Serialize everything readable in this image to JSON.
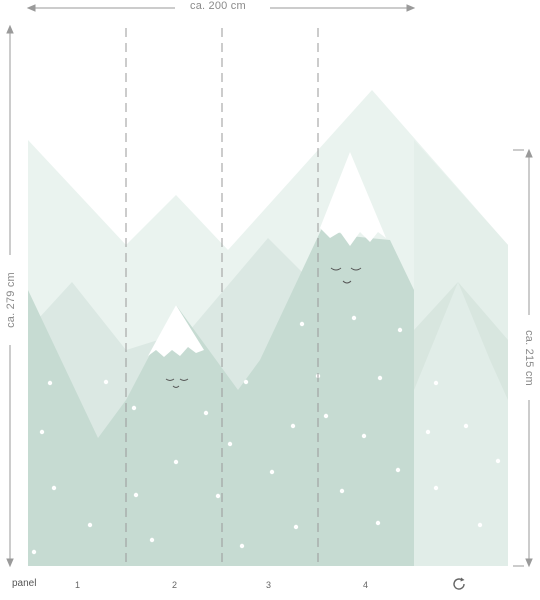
{
  "dimensions": {
    "width_label": "ca. 200 cm",
    "height_label": "ca. 279 cm",
    "height2_label": "ca. 215 cm"
  },
  "footer": {
    "panel_word": "panel",
    "panels": [
      "1",
      "2",
      "3",
      "4"
    ],
    "reset_icon": "rotate-icon"
  },
  "colors": {
    "mint_dark": "#c6dbd2",
    "mint_mid": "#dbe8e3",
    "mint_light": "#eaf3ef",
    "guide": "#9a9a9a",
    "arrow": "#9a9a9a"
  }
}
